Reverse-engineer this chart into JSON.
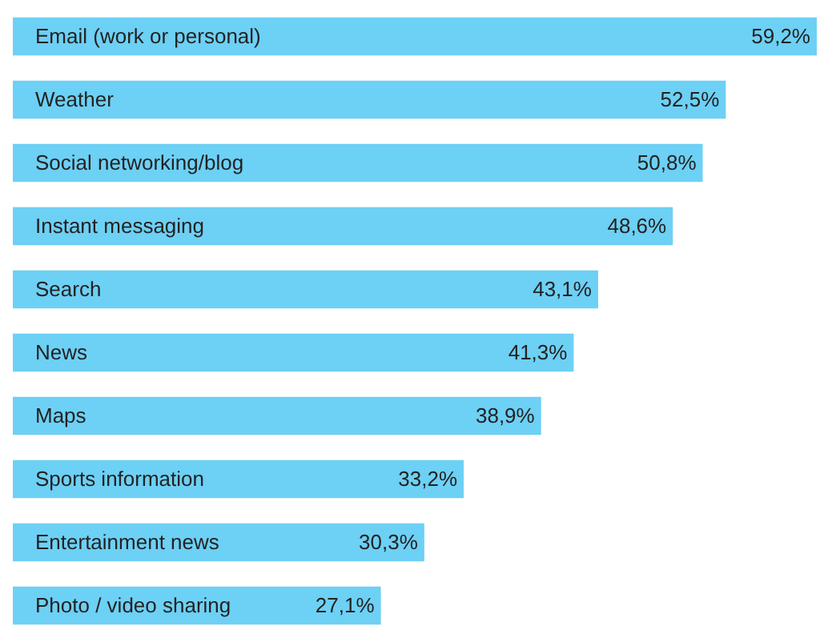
{
  "chart_data": {
    "type": "bar",
    "orientation": "horizontal",
    "categories": [
      "Email (work or personal)",
      "Weather",
      "Social networking/blog",
      "Instant messaging",
      "Search",
      "News",
      "Maps",
      "Sports information",
      "Entertainment news",
      "Photo / video sharing"
    ],
    "values": [
      59.2,
      52.5,
      50.8,
      48.6,
      43.1,
      41.3,
      38.9,
      33.2,
      30.3,
      27.1
    ],
    "value_labels": [
      "59,2%",
      "52,5%",
      "50,8%",
      "48,6%",
      "43,1%",
      "41,3%",
      "38,9%",
      "33,2%",
      "30,3%",
      "27,1%"
    ],
    "color": "#6dd0f5"
  }
}
